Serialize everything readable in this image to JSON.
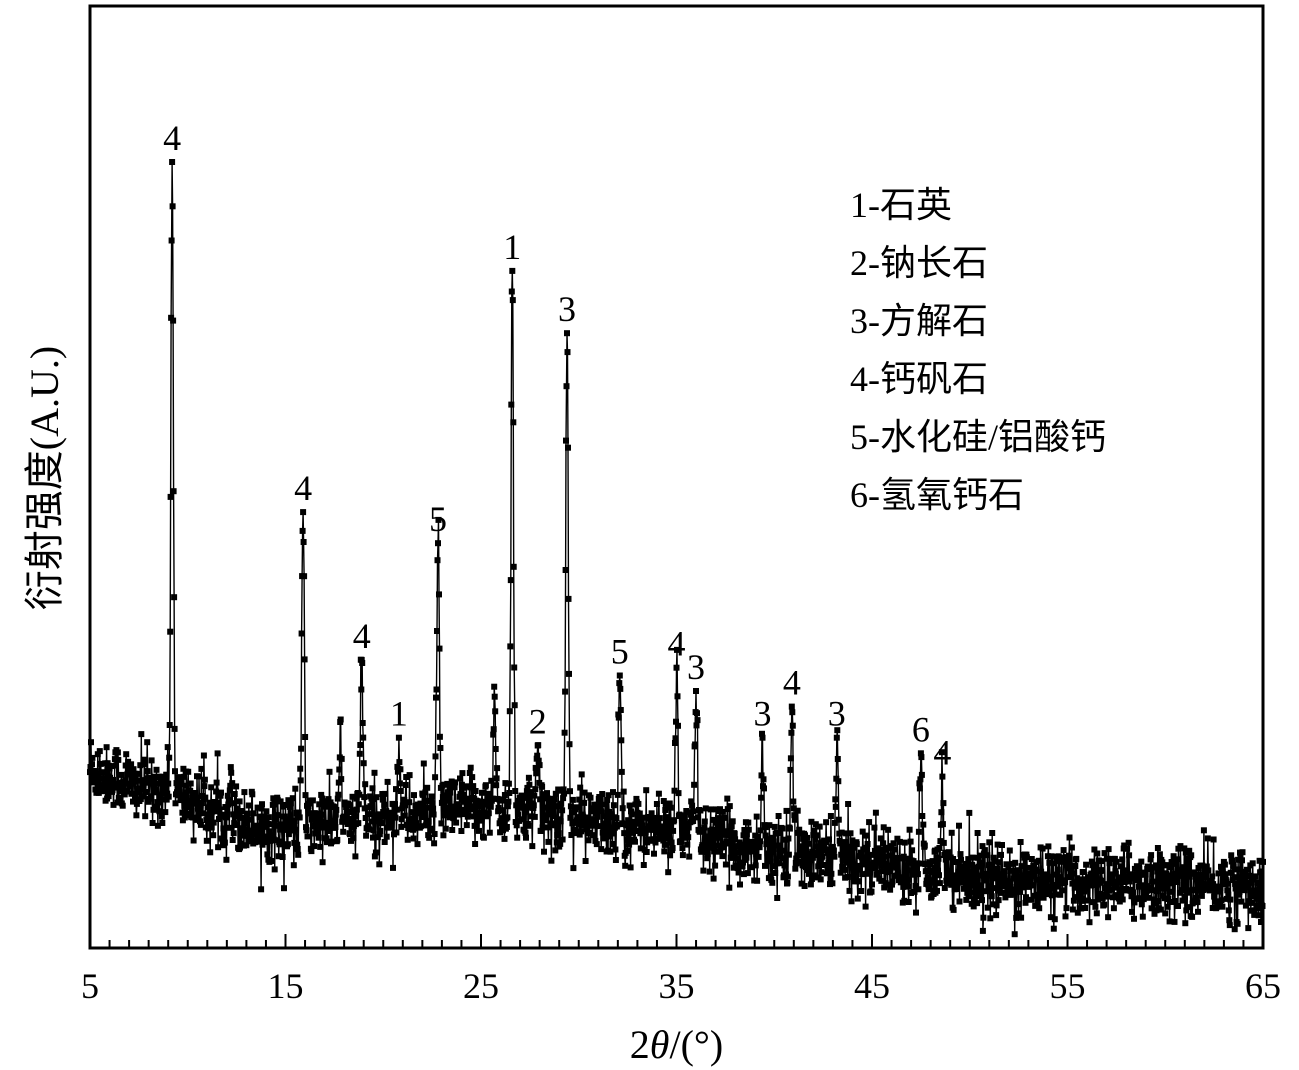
{
  "chart_data": {
    "type": "line",
    "title": "",
    "xlabel": "2θ/(°)",
    "ylabel": "衍射强度(A.U.)",
    "xlim": [
      5,
      65
    ],
    "ylim": [
      0,
      100
    ],
    "x_ticks": [
      5,
      15,
      25,
      35,
      45,
      55,
      65
    ],
    "x_minor_step": 1,
    "y_ticks_shown": false,
    "grid": false,
    "marker": "square",
    "line_color": "#000000",
    "legend_position": "top-right",
    "legend": [
      "1-石英",
      "2-钠长石",
      "3-方解石",
      "4-钙矾石",
      "5-水化硅/铝酸钙",
      "6-氢氧钙石"
    ],
    "background_curve": [
      [
        5,
        22
      ],
      [
        7,
        20
      ],
      [
        9,
        19
      ],
      [
        11,
        17
      ],
      [
        13,
        15
      ],
      [
        15,
        14.5
      ],
      [
        17,
        15
      ],
      [
        19,
        15.5
      ],
      [
        21,
        16
      ],
      [
        23,
        16.5
      ],
      [
        25,
        17
      ],
      [
        27,
        16.5
      ],
      [
        29,
        16
      ],
      [
        31,
        15
      ],
      [
        33,
        14.5
      ],
      [
        35,
        14
      ],
      [
        37,
        13
      ],
      [
        39,
        11.5
      ],
      [
        41,
        11
      ],
      [
        43,
        10.5
      ],
      [
        45,
        10
      ],
      [
        47,
        9.5
      ],
      [
        49,
        9
      ],
      [
        51,
        8
      ],
      [
        53,
        7.5
      ],
      [
        55,
        7.5
      ],
      [
        57,
        7.5
      ],
      [
        59,
        7.5
      ],
      [
        61,
        7.5
      ],
      [
        63,
        7
      ],
      [
        65,
        7
      ]
    ],
    "peaks": [
      {
        "x": 9.2,
        "y": 100,
        "label": "4"
      },
      {
        "x": 15.9,
        "y": 55,
        "label": "4"
      },
      {
        "x": 18.9,
        "y": 36,
        "label": "4"
      },
      {
        "x": 20.8,
        "y": 26,
        "label": "1"
      },
      {
        "x": 22.8,
        "y": 51,
        "label": "5"
      },
      {
        "x": 26.6,
        "y": 86,
        "label": "1"
      },
      {
        "x": 27.9,
        "y": 25,
        "label": "2"
      },
      {
        "x": 29.4,
        "y": 78,
        "label": "3"
      },
      {
        "x": 32.1,
        "y": 34,
        "label": "5"
      },
      {
        "x": 35.0,
        "y": 35,
        "label": "4"
      },
      {
        "x": 36.0,
        "y": 32,
        "label": "3"
      },
      {
        "x": 39.4,
        "y": 26,
        "label": "3"
      },
      {
        "x": 40.9,
        "y": 30,
        "label": "4"
      },
      {
        "x": 43.2,
        "y": 26,
        "label": "3"
      },
      {
        "x": 47.5,
        "y": 24,
        "label": "6"
      },
      {
        "x": 48.6,
        "y": 21,
        "label": "4"
      }
    ],
    "minor_peaks": [
      {
        "x": 25.7,
        "y": 30
      },
      {
        "x": 17.8,
        "y": 25
      },
      {
        "x": 12.2,
        "y": 22
      }
    ]
  }
}
